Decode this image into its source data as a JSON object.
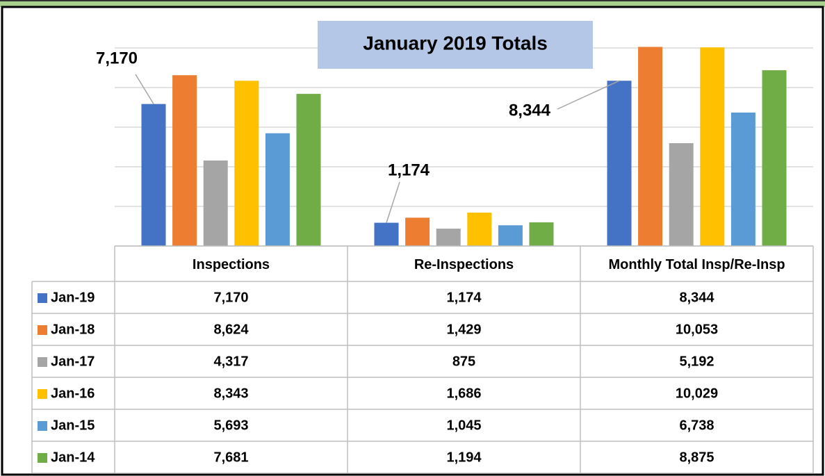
{
  "chart_data": {
    "type": "bar",
    "title": "January 2019 Totals",
    "categories": [
      "Inspections",
      "Re-Inspections",
      "Monthly Total Insp/Re-Insp"
    ],
    "series": [
      {
        "name": "Jan-19",
        "color": "#4472c4",
        "values": [
          7170,
          1174,
          8344
        ],
        "value_labels": [
          "7,170",
          "1,174",
          "8,344"
        ]
      },
      {
        "name": "Jan-18",
        "color": "#ed7d31",
        "values": [
          8624,
          1429,
          10053
        ],
        "value_labels": [
          "8,624",
          "1,429",
          "10,053"
        ]
      },
      {
        "name": "Jan-17",
        "color": "#a5a5a5",
        "values": [
          4317,
          875,
          5192
        ],
        "value_labels": [
          "4,317",
          "875",
          "5,192"
        ]
      },
      {
        "name": "Jan-16",
        "color": "#ffc000",
        "values": [
          8343,
          1686,
          10029
        ],
        "value_labels": [
          "8,343",
          "1,686",
          "10,029"
        ]
      },
      {
        "name": "Jan-15",
        "color": "#5b9bd5",
        "values": [
          5693,
          1045,
          6738
        ],
        "value_labels": [
          "5,693",
          "1,045",
          "6,738"
        ]
      },
      {
        "name": "Jan-14",
        "color": "#70ad47",
        "values": [
          7681,
          1194,
          8875
        ],
        "value_labels": [
          "7,681",
          "1,194",
          "8,875"
        ]
      }
    ],
    "ylim": [
      0,
      12000
    ],
    "yticks": [
      0,
      2000,
      4000,
      6000,
      8000,
      10000
    ],
    "grid": true
  }
}
